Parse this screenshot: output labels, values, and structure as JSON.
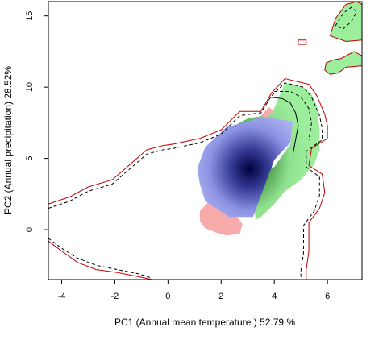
{
  "chart_data": {
    "type": "density-contour",
    "xlabel": "PC1 (Annual mean temperature ) 52.79 %",
    "ylabel": "PC2 (Annual precipitation) 28.52%",
    "xlim": [
      -4.5,
      7.3
    ],
    "ylim": [
      -3.5,
      16.0
    ],
    "x_ticks": [
      -4,
      -2,
      0,
      2,
      4,
      6
    ],
    "y_ticks": [
      0,
      5,
      10,
      15
    ],
    "grid": false,
    "series": [],
    "colors": {
      "overlap_dark": "#000040",
      "blue": "#aab0ee",
      "green": "#9cee9c",
      "pink": "#f6aaaa",
      "contour_red": "#c00000",
      "contour_black": "#000000"
    },
    "regions": {
      "blue_core": [
        [
          1.1,
          4.3
        ],
        [
          1.4,
          5.8
        ],
        [
          2.2,
          7.2
        ],
        [
          3.6,
          7.9
        ],
        [
          4.7,
          7.6
        ],
        [
          4.6,
          6.1
        ],
        [
          4.0,
          4.9
        ],
        [
          3.5,
          2.4
        ],
        [
          3.2,
          0.9
        ],
        [
          2.3,
          0.9
        ],
        [
          1.4,
          2.0
        ],
        [
          1.2,
          3.2
        ]
      ],
      "green_region": [
        [
          1.5,
          6.0
        ],
        [
          2.2,
          7.0
        ],
        [
          3.0,
          7.8
        ],
        [
          3.9,
          8.1
        ],
        [
          4.4,
          10.3
        ],
        [
          5.1,
          10.0
        ],
        [
          5.4,
          9.5
        ],
        [
          5.6,
          8.7
        ],
        [
          5.7,
          7.0
        ],
        [
          5.7,
          5.6
        ],
        [
          5.5,
          4.6
        ],
        [
          5.0,
          3.5
        ],
        [
          4.4,
          2.7
        ],
        [
          4.0,
          1.8
        ],
        [
          3.5,
          0.9
        ],
        [
          3.3,
          0.7
        ],
        [
          3.2,
          2.2
        ],
        [
          2.5,
          3.5
        ],
        [
          2.8,
          4.5
        ],
        [
          3.3,
          4.2
        ],
        [
          4.0,
          4.4
        ],
        [
          4.6,
          6.0
        ],
        [
          4.7,
          7.6
        ],
        [
          3.6,
          7.9
        ],
        [
          2.3,
          7.1
        ]
      ],
      "pink_region": [
        [
          1.2,
          1.3
        ],
        [
          1.5,
          1.9
        ],
        [
          2.0,
          1.5
        ],
        [
          2.6,
          0.9
        ],
        [
          2.8,
          0.4
        ],
        [
          2.7,
          -0.3
        ],
        [
          2.2,
          -0.4
        ],
        [
          1.8,
          -0.2
        ],
        [
          1.4,
          0.1
        ],
        [
          1.2,
          0.6
        ]
      ],
      "pink_top": [
        [
          3.5,
          8.0
        ],
        [
          3.8,
          8.6
        ],
        [
          4.0,
          8.3
        ],
        [
          3.7,
          7.9
        ]
      ],
      "green_top_right": [
        [
          6.1,
          13.6
        ],
        [
          6.3,
          14.8
        ],
        [
          6.7,
          15.8
        ],
        [
          7.1,
          16.0
        ],
        [
          7.3,
          15.8
        ],
        [
          7.3,
          13.3
        ],
        [
          6.7,
          13.2
        ]
      ],
      "green_island": [
        [
          5.9,
          11.2
        ],
        [
          5.95,
          11.7
        ],
        [
          6.2,
          11.9
        ],
        [
          6.5,
          12.0
        ],
        [
          6.8,
          12.3
        ],
        [
          7.0,
          12.5
        ],
        [
          7.3,
          12.2
        ],
        [
          7.3,
          11.5
        ],
        [
          6.7,
          11.4
        ],
        [
          6.4,
          11.0
        ],
        [
          6.1,
          10.9
        ]
      ]
    },
    "contours": {
      "red_outer": [
        [
          -4.5,
          1.8
        ],
        [
          -3.7,
          2.3
        ],
        [
          -3.0,
          3.0
        ],
        [
          -2.1,
          3.5
        ],
        [
          -1.6,
          4.3
        ],
        [
          -0.8,
          5.6
        ],
        [
          -0.2,
          5.9
        ],
        [
          0.2,
          6.0
        ],
        [
          1.2,
          6.4
        ],
        [
          2.0,
          7.0
        ],
        [
          2.7,
          8.3
        ],
        [
          3.5,
          8.3
        ],
        [
          3.9,
          9.6
        ],
        [
          4.4,
          10.6
        ],
        [
          5.3,
          10.2
        ],
        [
          5.6,
          9.4
        ],
        [
          5.9,
          8.1
        ],
        [
          6.0,
          7.3
        ],
        [
          6.0,
          6.4
        ],
        [
          5.4,
          5.7
        ],
        [
          5.3,
          4.5
        ],
        [
          5.8,
          3.9
        ],
        [
          5.9,
          2.6
        ],
        [
          5.7,
          1.5
        ],
        [
          5.3,
          0.5
        ],
        [
          5.3,
          -1.5
        ],
        [
          5.2,
          -2.8
        ],
        [
          5.2,
          -3.5
        ]
      ],
      "red_lower": [
        [
          -4.5,
          -0.8
        ],
        [
          -4.0,
          -1.5
        ],
        [
          -3.4,
          -2.3
        ],
        [
          -2.7,
          -2.8
        ],
        [
          -1.9,
          -3.0
        ],
        [
          -1.1,
          -3.3
        ],
        [
          -0.6,
          -3.5
        ]
      ],
      "red_small_loop": [
        [
          4.9,
          13.3
        ],
        [
          5.2,
          13.3
        ],
        [
          5.2,
          13.0
        ],
        [
          4.9,
          13.0
        ],
        [
          4.9,
          13.3
        ]
      ],
      "black_dashed_outer": [
        [
          -4.5,
          1.5
        ],
        [
          -3.7,
          2.0
        ],
        [
          -3.0,
          2.7
        ],
        [
          -2.1,
          3.2
        ],
        [
          -1.6,
          4.0
        ],
        [
          -0.8,
          5.3
        ],
        [
          -0.2,
          5.6
        ],
        [
          0.2,
          5.7
        ],
        [
          1.2,
          6.1
        ],
        [
          2.0,
          6.7
        ],
        [
          2.7,
          8.0
        ],
        [
          3.5,
          8.2
        ],
        [
          3.9,
          9.4
        ],
        [
          4.4,
          10.3
        ],
        [
          5.1,
          10.0
        ],
        [
          5.4,
          9.3
        ],
        [
          5.7,
          8.0
        ],
        [
          5.8,
          7.1
        ],
        [
          5.8,
          6.3
        ],
        [
          5.2,
          5.5
        ],
        [
          5.2,
          4.4
        ],
        [
          5.7,
          3.7
        ],
        [
          5.7,
          2.4
        ],
        [
          5.5,
          1.3
        ],
        [
          5.1,
          0.3
        ],
        [
          5.1,
          -1.6
        ],
        [
          5.0,
          -2.9
        ],
        [
          5.0,
          -3.5
        ]
      ],
      "black_dashed_lower": [
        [
          -4.5,
          -0.6
        ],
        [
          -4.0,
          -1.3
        ],
        [
          -3.4,
          -2.0
        ],
        [
          -2.7,
          -2.5
        ],
        [
          -1.9,
          -2.8
        ],
        [
          -1.1,
          -3.1
        ],
        [
          -0.6,
          -3.4
        ]
      ],
      "black_solid_inner": [
        [
          3.8,
          9.3
        ],
        [
          4.3,
          9.2
        ],
        [
          4.6,
          8.9
        ],
        [
          4.8,
          8.2
        ],
        [
          4.9,
          7.3
        ],
        [
          4.8,
          6.3
        ],
        [
          4.7,
          5.3
        ]
      ],
      "black_dashed_inner": [
        [
          4.0,
          9.7
        ],
        [
          4.6,
          9.7
        ],
        [
          5.0,
          9.3
        ],
        [
          5.3,
          8.5
        ],
        [
          5.4,
          7.5
        ],
        [
          5.3,
          6.3
        ]
      ],
      "black_dashed_island": [
        [
          6.3,
          14.3
        ],
        [
          6.6,
          15.2
        ],
        [
          6.9,
          15.6
        ],
        [
          7.1,
          15.3
        ],
        [
          6.9,
          14.6
        ],
        [
          6.6,
          14.1
        ],
        [
          6.3,
          14.3
        ]
      ]
    }
  }
}
